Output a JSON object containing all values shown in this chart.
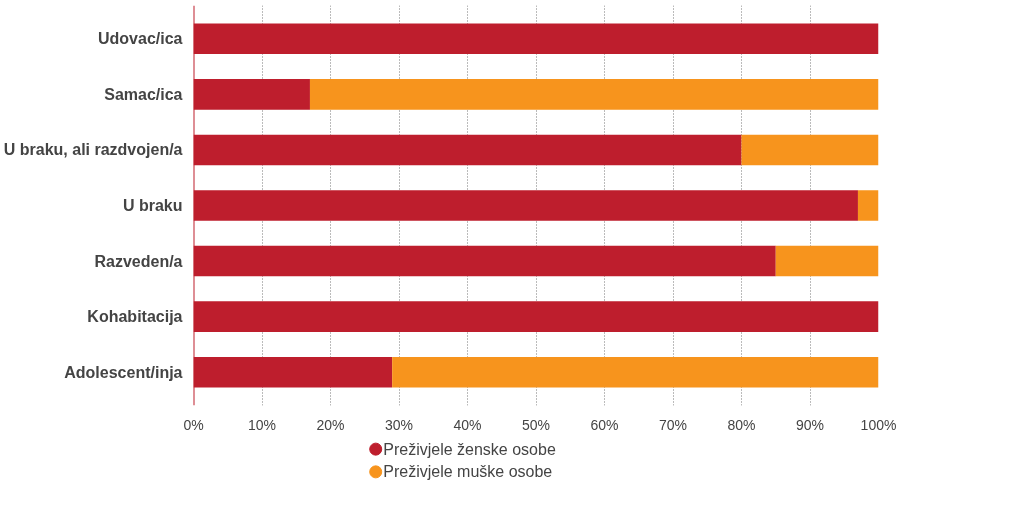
{
  "chart_data": {
    "type": "bar",
    "orientation": "horizontal",
    "stacked": true,
    "categories": [
      "Udovac/ica",
      "Samac/ica",
      "U braku, ali razdvojen/a",
      "U braku",
      "Razveden/a",
      "Kohabitacija",
      "Adolescent/inja"
    ],
    "series": [
      {
        "name": "Preživjele ženske osobe",
        "color": "#be1e2d",
        "values": [
          100,
          17,
          80,
          97,
          85,
          100,
          29
        ]
      },
      {
        "name": "Preživjele muške osobe",
        "color": "#f7941d",
        "values": [
          0,
          83,
          20,
          3,
          15,
          0,
          71
        ]
      }
    ],
    "xlim": [
      0,
      100
    ],
    "xticks": [
      {
        "value": 0,
        "label": "0%"
      },
      {
        "value": 10,
        "label": "10%"
      },
      {
        "value": 20,
        "label": "20%"
      },
      {
        "value": 30,
        "label": "30%"
      },
      {
        "value": 40,
        "label": "40%"
      },
      {
        "value": 50,
        "label": "50%"
      },
      {
        "value": 60,
        "label": "60%"
      },
      {
        "value": 70,
        "label": "70%"
      },
      {
        "value": 80,
        "label": "80%"
      },
      {
        "value": 90,
        "label": "90%"
      },
      {
        "value": 100,
        "label": "100%"
      }
    ],
    "grid": "x",
    "legend": "bottom",
    "marker": "circle"
  }
}
